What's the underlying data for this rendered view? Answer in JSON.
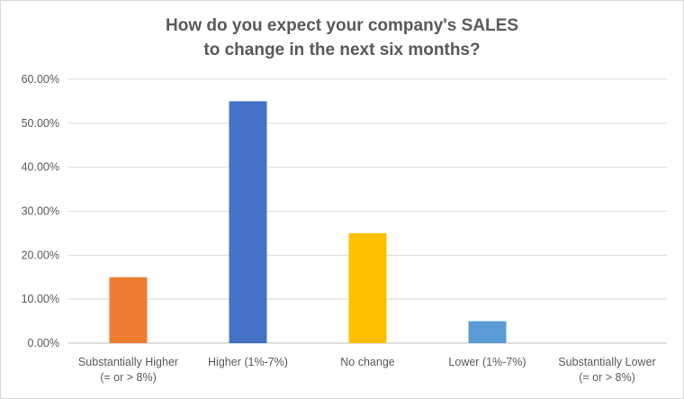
{
  "chart_data": {
    "type": "bar",
    "title_lines": [
      "How do you expect your company's SALES",
      "to change in the next six months?"
    ],
    "categories": [
      [
        "Substantially Higher",
        "(= or > 8%)"
      ],
      [
        "Higher (1%-7%)"
      ],
      [
        "No change"
      ],
      [
        "Lower (1%-7%)"
      ],
      [
        "Substantially Lower",
        "(= or > 8%)"
      ]
    ],
    "values": [
      15.0,
      55.0,
      25.0,
      5.0,
      0.0
    ],
    "colors": [
      "#ED7D31",
      "#4472C4",
      "#FFC000",
      "#5B9BD5",
      "#A5A5A5"
    ],
    "ylim": [
      0,
      60
    ],
    "yticks": [
      "0.00%",
      "10.00%",
      "20.00%",
      "30.00%",
      "40.00%",
      "50.00%",
      "60.00%"
    ],
    "grid": true,
    "legend": "none"
  }
}
